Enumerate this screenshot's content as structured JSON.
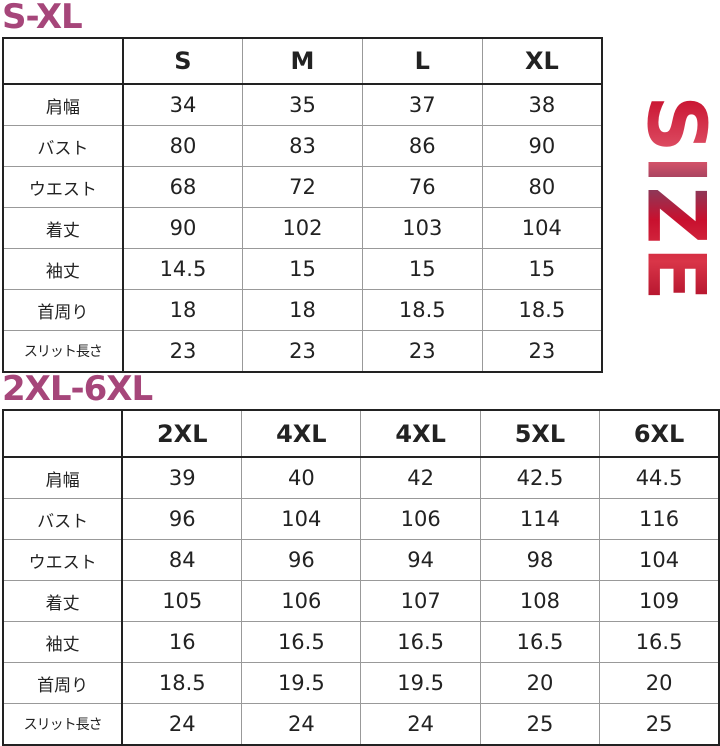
{
  "side_label": "SIZE",
  "colors": {
    "title": "#a6467a",
    "side_label": "#c8102e"
  },
  "row_labels": [
    "肩幅",
    "バスト",
    "ウエスト",
    "着丈",
    "袖丈",
    "首周り",
    "スリット長さ"
  ],
  "table1": {
    "title": "S-XL",
    "sizes": [
      "S",
      "M",
      "L",
      "XL"
    ],
    "rows": [
      [
        "34",
        "35",
        "37",
        "38"
      ],
      [
        "80",
        "83",
        "86",
        "90"
      ],
      [
        "68",
        "72",
        "76",
        "80"
      ],
      [
        "90",
        "102",
        "103",
        "104"
      ],
      [
        "14.5",
        "15",
        "15",
        "15"
      ],
      [
        "18",
        "18",
        "18.5",
        "18.5"
      ],
      [
        "23",
        "23",
        "23",
        "23"
      ]
    ]
  },
  "table2": {
    "title": "2XL-6XL",
    "sizes": [
      "2XL",
      "4XL",
      "4XL",
      "5XL",
      "6XL"
    ],
    "rows": [
      [
        "39",
        "40",
        "42",
        "42.5",
        "44.5"
      ],
      [
        "96",
        "104",
        "106",
        "114",
        "116"
      ],
      [
        "84",
        "96",
        "94",
        "98",
        "104"
      ],
      [
        "105",
        "106",
        "107",
        "108",
        "109"
      ],
      [
        "16",
        "16.5",
        "16.5",
        "16.5",
        "16.5"
      ],
      [
        "18.5",
        "19.5",
        "19.5",
        "20",
        "20"
      ],
      [
        "24",
        "24",
        "24",
        "25",
        "25"
      ]
    ]
  }
}
